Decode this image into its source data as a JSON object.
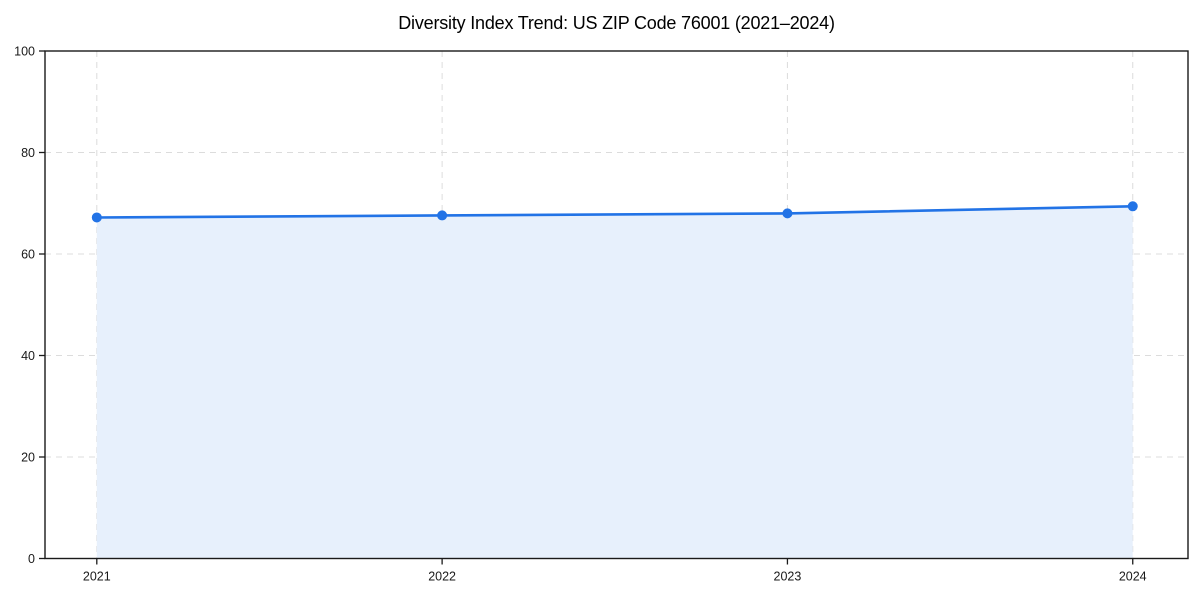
{
  "chart_data": {
    "type": "area",
    "title": "Diversity Index Trend: US ZIP Code 76001 (2021–2024)",
    "x": [
      2021,
      2022,
      2023,
      2024
    ],
    "x_tick_labels": [
      "2021",
      "2022",
      "2023",
      "2024"
    ],
    "series": [
      {
        "name": "Diversity Index",
        "values": [
          67.2,
          67.6,
          68.0,
          69.4
        ]
      }
    ],
    "xlabel": "",
    "ylabel": "",
    "xlim": [
      2020.85,
      2024.16
    ],
    "ylim": [
      0,
      100
    ],
    "y_ticks": [
      0,
      20,
      40,
      60,
      80,
      100
    ],
    "y_tick_labels": [
      "0",
      "20",
      "40",
      "60",
      "80",
      "100"
    ],
    "grid": "dashed",
    "legend": "none",
    "colors": {
      "line": "#2273e6",
      "marker": "#2273e6",
      "fill": "#e7f0fc",
      "grid": "#dcdcdc",
      "spine": "#1a1a1a",
      "tick_label": "#1a1a1a",
      "title": "#000000"
    }
  }
}
